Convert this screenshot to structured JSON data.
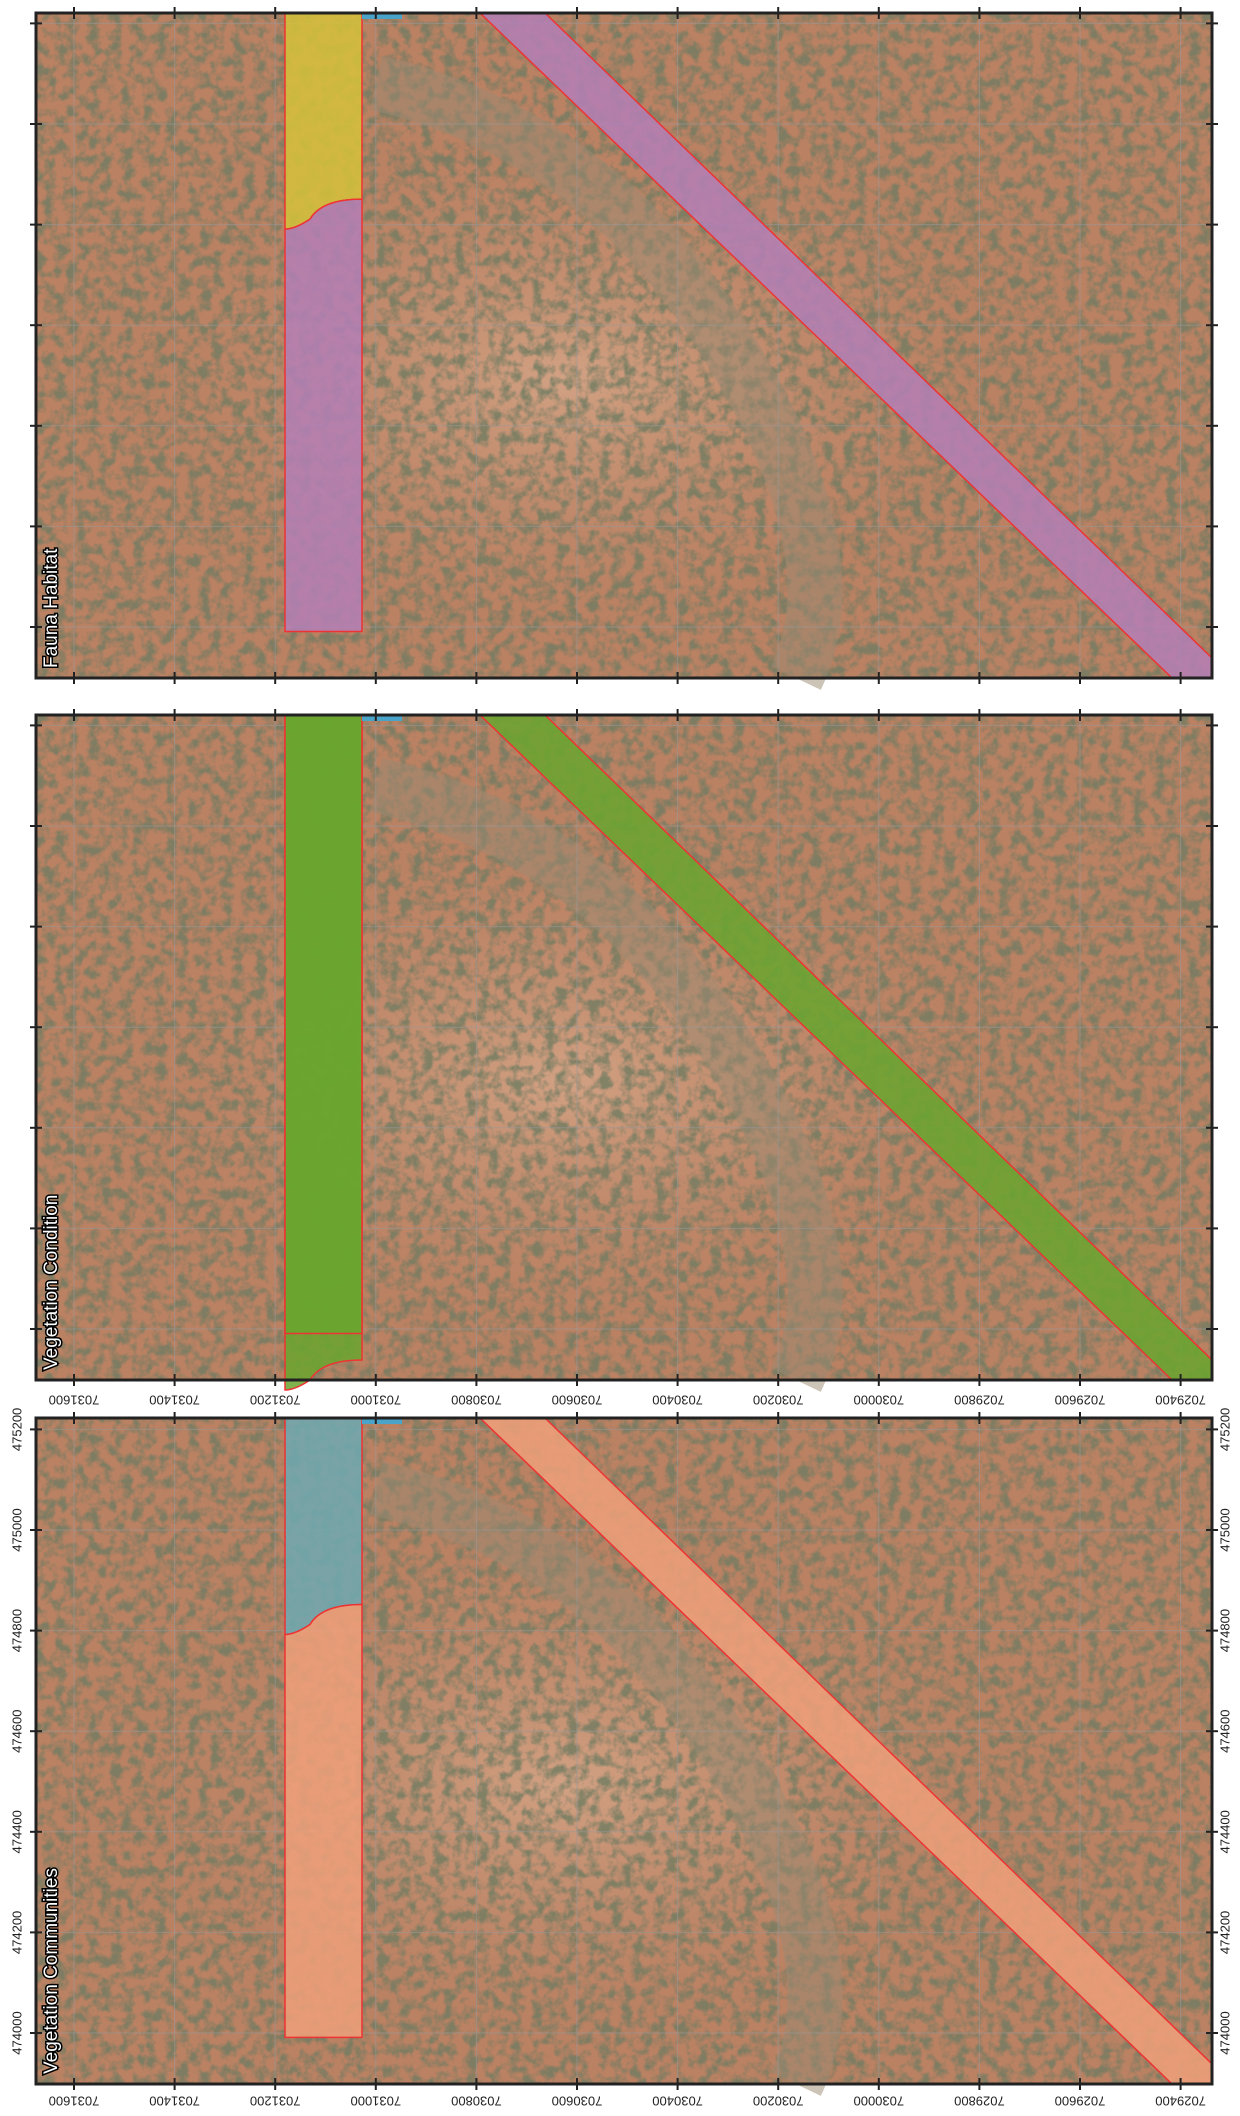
{
  "panels": [
    {
      "title": "Fauna Habitat"
    },
    {
      "title": "Vegetation Condition"
    },
    {
      "title": "Vegetation Communities"
    }
  ],
  "easting_labels": [
    "7031600",
    "7031400",
    "7031200",
    "7031000",
    "7030800",
    "7030600",
    "7030400",
    "7030200",
    "7030000",
    "7029800",
    "7029600",
    "7029400"
  ],
  "northing_labels": [
    "474000",
    "474200",
    "474400",
    "474600",
    "474800",
    "475000",
    "475200"
  ]
}
